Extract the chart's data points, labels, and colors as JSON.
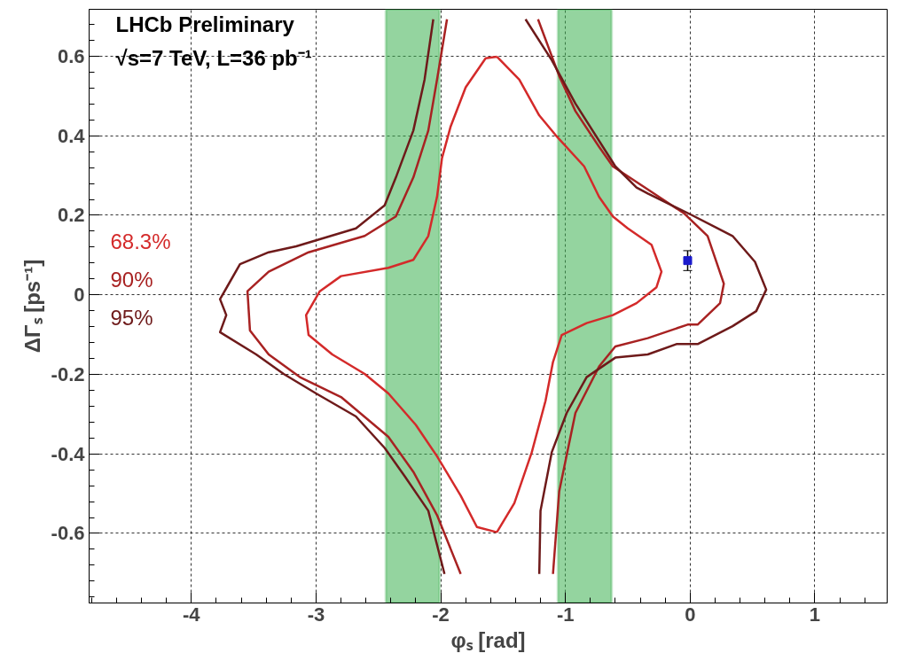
{
  "chart_data": {
    "type": "line",
    "xlabel": "φₛ [rad]",
    "ylabel": "ΔΓₛ [ps⁻¹]",
    "annotations": [
      "LHCb Preliminary",
      "√s=7 TeV, L=36 pb⁻¹"
    ],
    "xlim": [
      -4.82,
      1.58
    ],
    "ylim": [
      -0.775,
      0.718
    ],
    "xticks": [
      -4,
      -3,
      -2,
      -1,
      0,
      1
    ],
    "yticks": [
      -0.6,
      -0.4,
      -0.2,
      0,
      0.2,
      0.4,
      0.6
    ],
    "grid": true,
    "line_style": "solid",
    "marker": "none",
    "bands": [
      {
        "axis": "x",
        "from": -2.44,
        "to": -2.01,
        "color": "#3cb050"
      },
      {
        "axis": "x",
        "from": -1.06,
        "to": -0.63,
        "color": "#3cb050"
      }
    ],
    "series": [
      {
        "name": "68.3%",
        "color": "#d42a2a",
        "x": [
          -1.55,
          -1.64,
          -1.8,
          -1.92,
          -1.99,
          -2.03,
          -2.1,
          -2.22,
          -2.42,
          -2.8,
          -2.97,
          -3.08,
          -3.06,
          -2.87,
          -2.61,
          -2.42,
          -2.2,
          -2.03,
          -1.84,
          -1.71,
          -1.55,
          null,
          -1.55,
          -1.41,
          -1.27,
          -1.16,
          -1.1,
          -1.03,
          -0.83,
          -0.62,
          -0.43,
          -0.27,
          -0.23,
          -0.31,
          -0.5,
          -0.62,
          -0.73,
          -0.85,
          -1.08,
          -1.21,
          -1.37,
          -1.55
        ],
        "values": [
          0.599,
          0.595,
          0.522,
          0.424,
          0.344,
          0.246,
          0.148,
          0.088,
          0.068,
          0.047,
          0.009,
          -0.051,
          -0.101,
          -0.15,
          -0.199,
          -0.248,
          -0.327,
          -0.406,
          -0.505,
          -0.584,
          -0.597,
          null,
          -0.597,
          -0.524,
          -0.396,
          -0.267,
          -0.169,
          -0.101,
          -0.071,
          -0.051,
          -0.021,
          0.019,
          0.058,
          0.126,
          0.167,
          0.197,
          0.246,
          0.323,
          0.402,
          0.451,
          0.541,
          0.599
        ]
      },
      {
        "name": "90%",
        "color": "#a82222",
        "x": [
          -1.95,
          -2.03,
          -2.1,
          -2.22,
          -2.36,
          -2.61,
          -3.06,
          -3.38,
          -3.55,
          -3.53,
          -3.38,
          -3.13,
          -2.8,
          -2.42,
          -2.22,
          -2.03,
          -1.84,
          null,
          -1.1,
          -1.05,
          -0.92,
          -0.73,
          -0.6,
          -0.34,
          -0.02,
          0.06,
          0.24,
          0.27,
          0.14,
          -0.05,
          -0.34,
          -0.62,
          -0.73,
          -0.92,
          -1.05,
          -1.22
        ],
        "values": [
          0.693,
          0.541,
          0.413,
          0.295,
          0.197,
          0.148,
          0.107,
          0.058,
          0.009,
          -0.09,
          -0.15,
          -0.207,
          -0.257,
          -0.357,
          -0.445,
          -0.554,
          -0.702,
          null,
          -0.702,
          -0.494,
          -0.297,
          -0.18,
          -0.13,
          -0.109,
          -0.075,
          -0.075,
          -0.021,
          0.028,
          0.148,
          0.205,
          0.265,
          0.323,
          0.372,
          0.462,
          0.55,
          0.693
        ]
      },
      {
        "name": "95%",
        "color": "#6e1a1a",
        "x": [
          -2.06,
          -2.13,
          -2.22,
          -2.36,
          -2.45,
          -2.68,
          -3.16,
          -3.38,
          -3.61,
          -3.77,
          -3.72,
          -3.77,
          -3.48,
          -3.26,
          -3.0,
          -2.68,
          -2.45,
          -2.29,
          -2.1,
          -1.97,
          null,
          -1.21,
          -1.2,
          -1.11,
          -0.99,
          -0.83,
          -0.6,
          -0.34,
          -0.11,
          0.06,
          0.34,
          0.53,
          0.61,
          0.52,
          0.34,
          0.01,
          -0.34,
          -0.43,
          -0.6,
          -0.92,
          -1.11,
          -1.32
        ],
        "values": [
          0.693,
          0.541,
          0.413,
          0.295,
          0.225,
          0.167,
          0.122,
          0.107,
          0.077,
          -0.011,
          -0.051,
          -0.094,
          -0.15,
          -0.199,
          -0.248,
          -0.306,
          -0.385,
          -0.456,
          -0.543,
          -0.702,
          null,
          -0.702,
          -0.543,
          -0.396,
          -0.297,
          -0.207,
          -0.158,
          -0.15,
          -0.124,
          -0.124,
          -0.079,
          -0.041,
          0.013,
          0.083,
          0.148,
          0.201,
          0.255,
          0.27,
          0.323,
          0.481,
          0.59,
          0.693
        ]
      },
      {
        "type": "scatter",
        "color": "#1a1acc",
        "marker": "square",
        "x": [
          -0.02
        ],
        "values": [
          0.086
        ],
        "errors": [
          0.025
        ]
      }
    ]
  }
}
